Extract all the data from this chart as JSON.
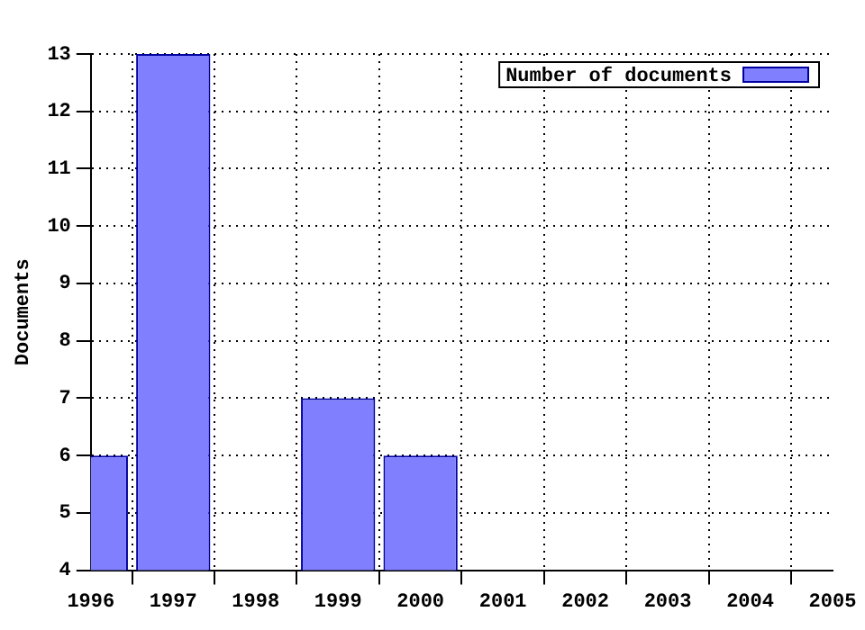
{
  "chart_data": {
    "type": "bar",
    "ylabel": "Documents",
    "x": [
      1996,
      1997,
      1998,
      1999,
      2000
    ],
    "series": [
      {
        "name": "Number of documents",
        "color": "#8080ff",
        "values": [
          6,
          13,
          null,
          7,
          6
        ]
      }
    ],
    "xlim": [
      1996,
      2005
    ],
    "xticks": [
      1996,
      1997,
      1998,
      1999,
      2000,
      2001,
      2002,
      2003,
      2004,
      2005
    ],
    "ylim": [
      4,
      13
    ],
    "yticks": [
      4,
      5,
      6,
      7,
      8,
      9,
      10,
      11,
      12,
      13
    ],
    "grid": true,
    "legend": "top right"
  }
}
